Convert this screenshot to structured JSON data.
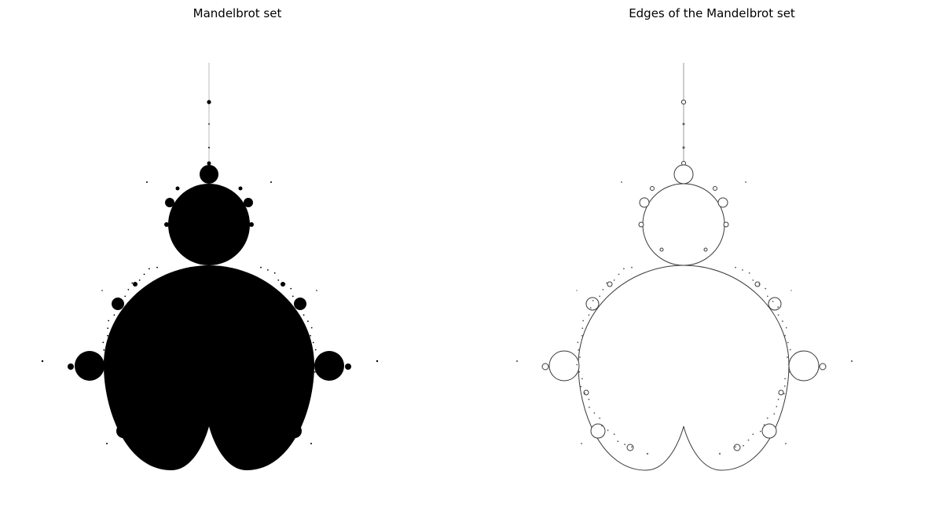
{
  "figure": {
    "panels": [
      {
        "title": "Mandelbrot set",
        "render_mode": "filled",
        "fill_color": "#000000",
        "background": "#ffffff"
      },
      {
        "title": "Edges of the Mandelbrot set",
        "render_mode": "edges",
        "stroke_color": "#3a3a3a",
        "background": "#ffffff"
      }
    ]
  }
}
